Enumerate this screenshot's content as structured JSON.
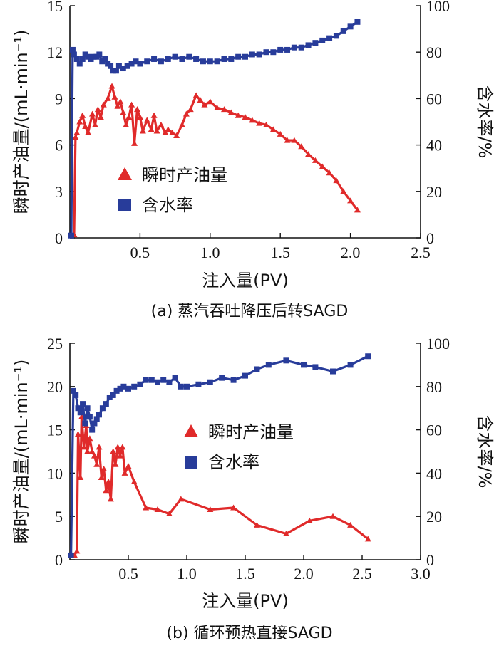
{
  "colors": {
    "oil": "#e02a2a",
    "water": "#283c9a",
    "axis": "#111111"
  },
  "chart_data": [
    {
      "type": "line",
      "caption": "(a) 蒸汽吞吐降压后转SAGD",
      "xlabel": "注入量(PV)",
      "ylabel": "瞬时产油量/(mL·min⁻¹)",
      "y2label": "含水率/%",
      "xlim": [
        0,
        2.5
      ],
      "ylim": [
        0,
        15
      ],
      "y2lim": [
        0,
        100
      ],
      "xticks": [
        0.5,
        1.0,
        1.5,
        2.0,
        2.5
      ],
      "xtick_labels": [
        "0.5",
        "1.0",
        "1.5",
        "2.0",
        "2.5"
      ],
      "yticks": [
        0,
        3,
        6,
        9,
        12,
        15
      ],
      "ytick_labels": [
        "0",
        "3",
        "6",
        "9",
        "12",
        "15"
      ],
      "y2ticks": [
        0,
        20,
        40,
        60,
        80,
        100
      ],
      "y2tick_labels": [
        "0",
        "20",
        "40",
        "60",
        "80",
        "100"
      ],
      "legend": [
        "瞬时产油量",
        "含水率"
      ],
      "legend_position": "center",
      "series": [
        {
          "name": "瞬时产油量",
          "axis": "left",
          "marker": "triangle",
          "x": [
            0.03,
            0.04,
            0.05,
            0.07,
            0.09,
            0.11,
            0.13,
            0.16,
            0.18,
            0.2,
            0.22,
            0.24,
            0.27,
            0.3,
            0.32,
            0.34,
            0.36,
            0.38,
            0.4,
            0.42,
            0.44,
            0.46,
            0.48,
            0.5,
            0.52,
            0.55,
            0.58,
            0.6,
            0.62,
            0.65,
            0.68,
            0.7,
            0.73,
            0.76,
            0.8,
            0.83,
            0.86,
            0.9,
            0.93,
            0.96,
            1.0,
            1.05,
            1.1,
            1.15,
            1.2,
            1.25,
            1.3,
            1.35,
            1.4,
            1.45,
            1.5,
            1.55,
            1.6,
            1.65,
            1.7,
            1.75,
            1.8,
            1.85,
            1.9,
            1.95,
            2.0,
            2.05
          ],
          "y": [
            0.2,
            6.5,
            6.8,
            7.5,
            7.9,
            7.2,
            6.8,
            8.0,
            7.3,
            8.3,
            7.8,
            8.6,
            9.0,
            9.8,
            9.1,
            8.5,
            8.8,
            8.1,
            7.3,
            7.8,
            8.6,
            6.1,
            8.3,
            7.8,
            6.9,
            7.6,
            7.0,
            7.9,
            6.9,
            7.3,
            6.8,
            7.0,
            6.8,
            6.6,
            7.3,
            8.0,
            8.3,
            9.2,
            8.9,
            8.6,
            8.8,
            8.4,
            8.3,
            8.1,
            7.9,
            7.8,
            7.6,
            7.4,
            7.3,
            7.0,
            6.7,
            6.3,
            6.3,
            5.9,
            5.4,
            5.0,
            4.6,
            4.2,
            3.7,
            3.0,
            2.4,
            1.8
          ]
        },
        {
          "name": "含水率",
          "axis": "right",
          "marker": "square",
          "x": [
            0.01,
            0.02,
            0.03,
            0.05,
            0.07,
            0.09,
            0.11,
            0.13,
            0.15,
            0.17,
            0.19,
            0.21,
            0.23,
            0.25,
            0.27,
            0.29,
            0.31,
            0.33,
            0.35,
            0.38,
            0.41,
            0.44,
            0.47,
            0.5,
            0.55,
            0.6,
            0.65,
            0.7,
            0.75,
            0.8,
            0.85,
            0.9,
            0.95,
            1.0,
            1.05,
            1.1,
            1.15,
            1.2,
            1.25,
            1.3,
            1.35,
            1.4,
            1.45,
            1.5,
            1.55,
            1.6,
            1.65,
            1.7,
            1.75,
            1.8,
            1.85,
            1.9,
            1.95,
            2.0,
            2.05
          ],
          "y": [
            1,
            81,
            79,
            77,
            75,
            77,
            79,
            78,
            77,
            78,
            78,
            79,
            76,
            77,
            75,
            74,
            72,
            72,
            74,
            73,
            74,
            75,
            76,
            75,
            76,
            77,
            76,
            77,
            78,
            77,
            78,
            77,
            76,
            76,
            76,
            77,
            77,
            78,
            78,
            79,
            79,
            80,
            80,
            81,
            81,
            82,
            82,
            83,
            84,
            85,
            86,
            87,
            89,
            91,
            93
          ]
        }
      ]
    },
    {
      "type": "line",
      "caption": "(b) 循环预热直接SAGD",
      "xlabel": "注入量(PV)",
      "ylabel": "瞬时产油量/(mL·min⁻¹)",
      "y2label": "含水率/%",
      "xlim": [
        0,
        3.0
      ],
      "ylim": [
        0,
        25
      ],
      "y2lim": [
        0,
        100
      ],
      "xticks": [
        0.5,
        1.0,
        1.5,
        2.0,
        2.5,
        3.0
      ],
      "xtick_labels": [
        "0.5",
        "1.0",
        "1.5",
        "2.0",
        "2.5",
        "3.0"
      ],
      "yticks": [
        0,
        5,
        10,
        15,
        20,
        25
      ],
      "ytick_labels": [
        "0",
        "5",
        "10",
        "15",
        "20",
        "25"
      ],
      "y2ticks": [
        0,
        20,
        40,
        60,
        80,
        100
      ],
      "y2tick_labels": [
        "0",
        "20",
        "40",
        "60",
        "80",
        "100"
      ],
      "legend": [
        "瞬时产油量",
        "含水率"
      ],
      "legend_position": "center",
      "series": [
        {
          "name": "瞬时产油量",
          "axis": "left",
          "marker": "triangle",
          "x": [
            0.04,
            0.06,
            0.07,
            0.09,
            0.1,
            0.12,
            0.14,
            0.15,
            0.17,
            0.19,
            0.21,
            0.23,
            0.25,
            0.27,
            0.29,
            0.31,
            0.33,
            0.35,
            0.37,
            0.39,
            0.41,
            0.43,
            0.45,
            0.47,
            0.5,
            0.55,
            0.65,
            0.75,
            0.85,
            0.95,
            1.2,
            1.4,
            1.6,
            1.85,
            2.05,
            2.25,
            2.4,
            2.55
          ],
          "y": [
            0.5,
            1.0,
            14.5,
            9.5,
            16.5,
            13.0,
            15.5,
            12.5,
            14.0,
            12.5,
            12.0,
            11.0,
            13.0,
            9.5,
            10.5,
            8.0,
            9.0,
            7.0,
            12.5,
            11.0,
            13.0,
            12.0,
            13.0,
            10.0,
            10.8,
            9.0,
            6.0,
            5.8,
            5.3,
            7.0,
            5.8,
            6.0,
            4.0,
            3.0,
            4.5,
            5.0,
            4.0,
            2.4
          ]
        },
        {
          "name": "含水率",
          "axis": "right",
          "marker": "square",
          "x": [
            0.01,
            0.03,
            0.05,
            0.07,
            0.09,
            0.11,
            0.13,
            0.15,
            0.17,
            0.19,
            0.21,
            0.23,
            0.25,
            0.28,
            0.31,
            0.34,
            0.37,
            0.4,
            0.43,
            0.46,
            0.5,
            0.55,
            0.6,
            0.65,
            0.7,
            0.75,
            0.8,
            0.85,
            0.9,
            0.95,
            1.0,
            1.1,
            1.2,
            1.3,
            1.4,
            1.5,
            1.6,
            1.7,
            1.85,
            2.0,
            2.1,
            2.25,
            2.4,
            2.55
          ],
          "y": [
            2,
            78,
            76,
            70,
            68,
            72,
            63,
            70,
            66,
            60,
            63,
            65,
            67,
            70,
            72,
            75,
            76,
            78,
            79,
            80,
            79,
            80,
            81,
            83,
            83,
            82,
            83,
            82,
            84,
            80,
            80,
            81,
            82,
            84,
            83,
            85,
            88,
            90,
            92,
            90,
            89,
            87,
            90,
            94
          ]
        }
      ]
    }
  ]
}
